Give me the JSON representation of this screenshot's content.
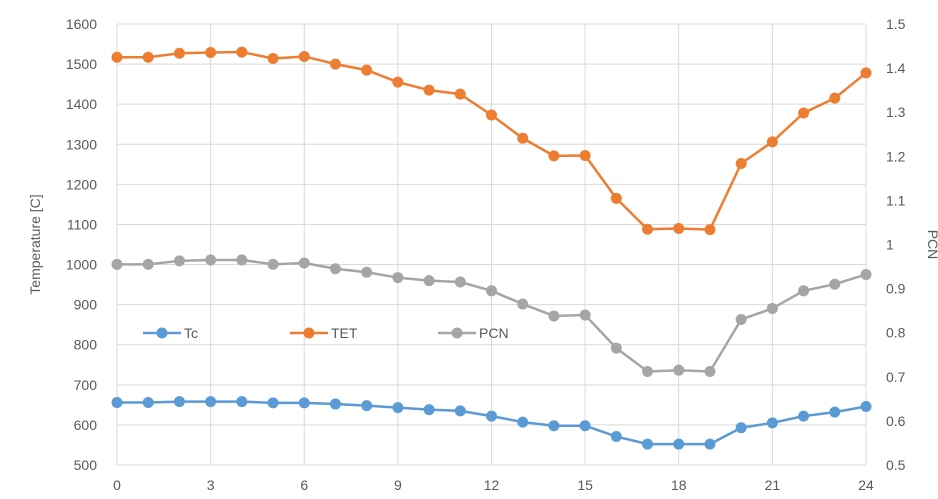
{
  "chart_data": {
    "type": "line",
    "x": [
      0,
      1,
      2,
      3,
      4,
      5,
      6,
      7,
      8,
      9,
      10,
      11,
      12,
      13,
      14,
      15,
      16,
      17,
      18,
      19,
      20,
      21,
      22,
      23,
      24
    ],
    "x_ticks": [
      "0",
      "3",
      "6",
      "9",
      "12",
      "15",
      "18",
      "21",
      "24"
    ],
    "xlim": [
      0,
      24
    ],
    "ylabel": "Temperature [C]",
    "ylim": [
      500,
      1600
    ],
    "y_ticks": [
      "500",
      "600",
      "700",
      "800",
      "900",
      "1000",
      "1100",
      "1200",
      "1300",
      "1400",
      "1500",
      "1600"
    ],
    "y2label": "PCN",
    "y2lim": [
      0.5,
      1.5
    ],
    "y2_ticks": [
      "0.5",
      "0.6",
      "0.7",
      "0.8",
      "0.9",
      "1",
      "1.1",
      "1.2",
      "1.3",
      "1.4",
      "1.5"
    ],
    "grid": true,
    "legend_position": "center-left",
    "series": [
      {
        "name": "Tc",
        "axis": "left",
        "color": "#5B9BD5",
        "values": [
          656,
          656,
          658,
          658,
          658,
          655,
          655,
          652,
          648,
          643,
          638,
          635,
          622,
          607,
          598,
          598,
          571,
          552,
          552,
          552,
          593,
          605,
          622,
          632,
          646
        ]
      },
      {
        "name": "TET",
        "axis": "left",
        "color": "#ED7D31",
        "values": [
          1517,
          1517,
          1527,
          1529,
          1530,
          1514,
          1519,
          1500,
          1485,
          1455,
          1435,
          1425,
          1373,
          1315,
          1271,
          1272,
          1165,
          1088,
          1090,
          1087,
          1252,
          1306,
          1378,
          1415,
          1478
        ]
      },
      {
        "name": "PCN",
        "axis": "right",
        "color": "#A5A5A5",
        "values": [
          0.955,
          0.955,
          0.963,
          0.965,
          0.965,
          0.955,
          0.958,
          0.945,
          0.937,
          0.925,
          0.918,
          0.915,
          0.895,
          0.865,
          0.838,
          0.84,
          0.765,
          0.712,
          0.715,
          0.712,
          0.83,
          0.855,
          0.895,
          0.91,
          0.932
        ]
      }
    ]
  }
}
